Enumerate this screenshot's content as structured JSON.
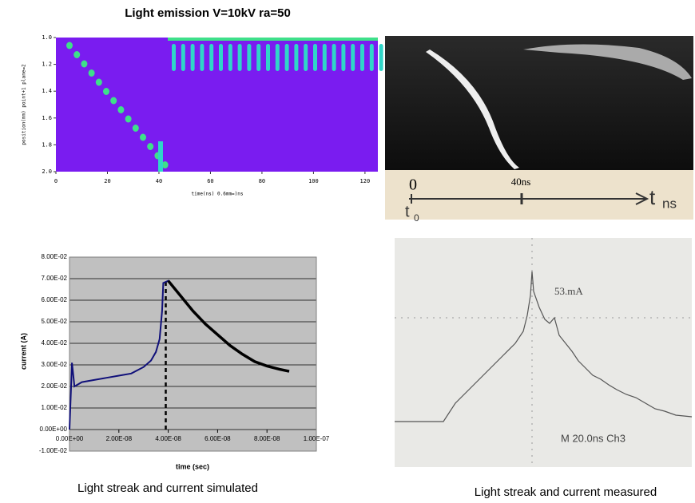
{
  "chart_data": [
    {
      "type": "heatmap",
      "title": "Light emission V=10kV ra=50",
      "x_label": "time(ns) 0.6mm=)ns",
      "y_label": "position(mm) point+1 plane=2",
      "xlim": [
        0,
        125
      ],
      "xticks": [
        0,
        20,
        40,
        60,
        80,
        100,
        120
      ],
      "ylim": [
        2.0,
        1.0
      ],
      "yticks": [
        {
          "value": 1,
          "label": "1.0"
        },
        1.2,
        1.4,
        1.6,
        1.8,
        {
          "value": 2,
          "label": "2.0"
        }
      ]
    },
    {
      "type": "line",
      "x_label": "time (sec)",
      "y_label": "current (A)",
      "xlim": [
        0,
        1e-07
      ],
      "xticks": [
        {
          "value": 0,
          "label": "0.00E+00"
        },
        {
          "value": 2e-08,
          "label": "2.00E-08"
        },
        {
          "value": 4e-08,
          "label": "4.00E-08"
        },
        {
          "value": 6e-08,
          "label": "6.00E-08"
        },
        {
          "value": 8e-08,
          "label": "8.00E-08"
        },
        {
          "value": 1e-07,
          "label": "1.00E-07"
        }
      ],
      "ylim": [
        -0.01,
        0.08
      ],
      "yticks": [
        {
          "value": -0.01,
          "label": "-1.00E-02"
        },
        {
          "value": 0,
          "label": "0.00E+00"
        },
        {
          "value": 0.01,
          "label": "1.00E-02"
        },
        {
          "value": 0.02,
          "label": "2.00E-02"
        },
        {
          "value": 0.03,
          "label": "3.00E-02"
        },
        {
          "value": 0.04,
          "label": "4.00E-02"
        },
        {
          "value": 0.05,
          "label": "5.00E-02"
        },
        {
          "value": 0.06,
          "label": "6.00E-02"
        },
        {
          "value": 0.07,
          "label": "7.00E-02"
        },
        {
          "value": 0.08,
          "label": "8.00E-02"
        }
      ],
      "grid": true,
      "dashed_line_x": 3.9e-08,
      "x": [
        0,
        1e-09,
        2e-09,
        5e-09,
        1e-08,
        1.5e-08,
        2e-08,
        2.5e-08,
        3e-08,
        3.3e-08,
        3.5e-08,
        3.65e-08,
        3.75e-08,
        3.8e-08,
        4e-08,
        4.5e-08,
        5e-08,
        5.5e-08,
        6e-08,
        6.5e-08,
        7e-08,
        7.5e-08,
        8e-08,
        8.5e-08,
        8.9e-08
      ],
      "series": [
        {
          "color": "#10107a",
          "values": [
            0,
            0.031,
            0.02,
            0.022,
            0.023,
            0.024,
            0.025,
            0.026,
            0.029,
            0.032,
            0.036,
            0.042,
            0.055,
            0.068,
            0.069,
            0.062,
            0.055,
            0.049,
            0.044,
            0.039,
            0.035,
            0.0315,
            0.0295,
            0.028,
            0.027
          ]
        }
      ]
    }
  ],
  "streak_measured": {
    "origin": "0",
    "marker": "40ns",
    "axis": "t",
    "axis_sub": "ns",
    "start": "t",
    "start_sub": "0"
  },
  "scope": {
    "peak": "53.mA",
    "setting": "M 20.0ns  Ch3"
  },
  "captions": [
    "Light streak and current simulated",
    "Light streak and current measured"
  ]
}
